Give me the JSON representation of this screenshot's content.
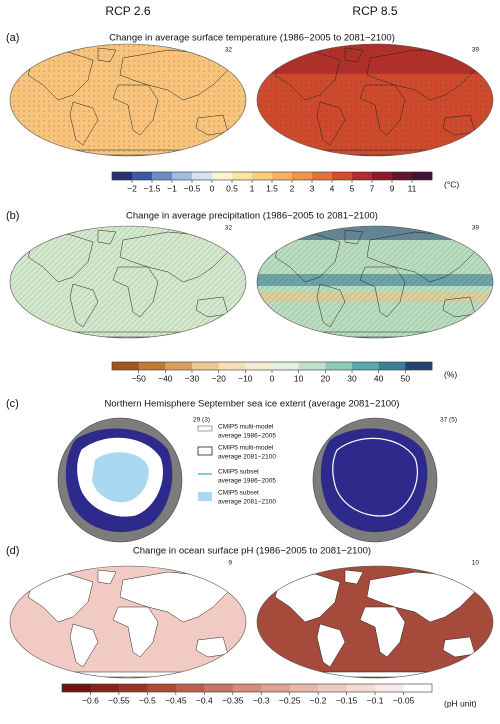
{
  "scenarios": [
    "RCP 2.6",
    "RCP 8.5"
  ],
  "panels": [
    {
      "label": "(a)",
      "title": "Change in average surface temperature (1986−2005 to 2081−2100)",
      "model_counts": [
        "32",
        "39"
      ],
      "colorbar": {
        "ticks": [
          "−2",
          "−1.5",
          "−1",
          "−0.5",
          "0",
          "0.5",
          "1",
          "1.5",
          "2",
          "3",
          "4",
          "5",
          "7",
          "9",
          "11"
        ],
        "colors": [
          "#2a2f6e",
          "#3a58a5",
          "#6c8cc5",
          "#a3bde0",
          "#d3e1f1",
          "#fbf3d3",
          "#fbe3a6",
          "#f9cc7e",
          "#f6b25e",
          "#f09445",
          "#e6703a",
          "#d44a2f",
          "#b52a2b",
          "#8c1a2b",
          "#661530",
          "#421338"
        ],
        "unit": "(°C)"
      }
    },
    {
      "label": "(b)",
      "title": "Change in average precipitation (1986−2005 to 2081−2100)",
      "model_counts": [
        "32",
        "39"
      ],
      "colorbar": {
        "ticks": [
          "−50",
          "−40",
          "−30",
          "−20",
          "−10",
          "0",
          "10",
          "20",
          "30",
          "40",
          "50"
        ],
        "colors": [
          "#a0561c",
          "#c07a37",
          "#d9a15d",
          "#ecc88f",
          "#f6e0b8",
          "#f3ecd5",
          "#e2f0dc",
          "#bfe2c8",
          "#8dcbb4",
          "#5aa9a6",
          "#3b7f98",
          "#24456f"
        ],
        "unit": "(%)"
      }
    },
    {
      "label": "(c)",
      "title": "Northern Hemisphere September sea ice extent (average 2081−2100)",
      "model_counts": [
        "29 (3)",
        "37 (5)"
      ],
      "legend": [
        [
          "CMIP5 multi-model",
          "average 1986−2005"
        ],
        [
          "CMIP5 multi-model",
          "average 2081−2100"
        ],
        [
          "CMIP5 subset",
          "average 1986−2005"
        ],
        [
          "CMIP5 subset",
          "average 2081−2100"
        ]
      ]
    },
    {
      "label": "(d)",
      "title": "Change in ocean surface pH (1986−2005 to 2081−2100)",
      "model_counts": [
        "9",
        "10"
      ],
      "colorbar": {
        "ticks": [
          "−0.6",
          "−0.55",
          "−0.5",
          "−0.45",
          "−0.4",
          "−0.35",
          "−0.3",
          "−0.25",
          "−0.2",
          "−0.15",
          "−0.1",
          "−0.05"
        ],
        "colors": [
          "#6e1410",
          "#862419",
          "#9b3626",
          "#ac4a38",
          "#bb5f4d",
          "#c87563",
          "#d48c7b",
          "#dea293",
          "#e7b7aa",
          "#eecbc1",
          "#f4dcd5",
          "#f9ebe7",
          "#ffffff"
        ],
        "unit": "(pH unit)"
      }
    }
  ]
}
